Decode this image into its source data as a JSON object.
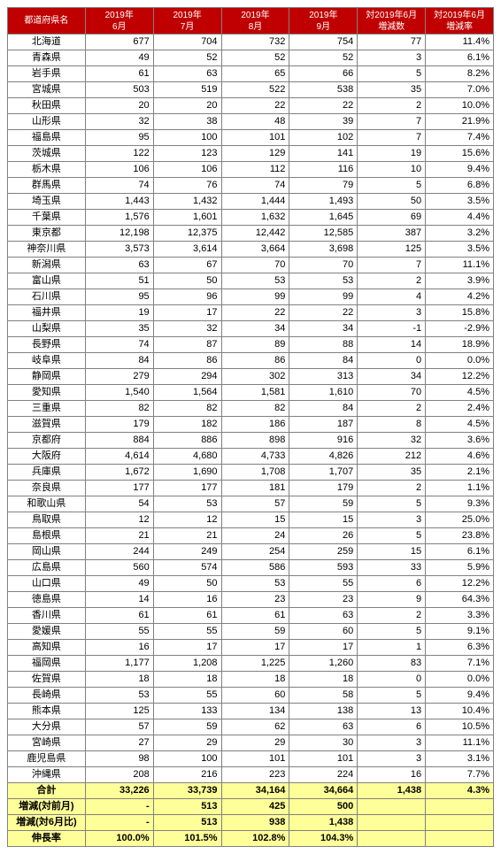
{
  "columns": [
    {
      "label": "都道府県名",
      "cls": "red"
    },
    {
      "label": "2019年\n6月",
      "cls": "red"
    },
    {
      "label": "2019年\n7月",
      "cls": "red"
    },
    {
      "label": "2019年\n8月",
      "cls": "red"
    },
    {
      "label": "2019年\n9月",
      "cls": "red"
    },
    {
      "label": "対2019年6月\n増減数",
      "cls": "dred"
    },
    {
      "label": "対2019年6月\n増減率",
      "cls": "dred"
    }
  ],
  "rows": [
    {
      "name": "北海道",
      "v": [
        "677",
        "704",
        "732",
        "754",
        "77",
        "11.4%"
      ]
    },
    {
      "name": "青森県",
      "v": [
        "49",
        "52",
        "52",
        "52",
        "3",
        "6.1%"
      ]
    },
    {
      "name": "岩手県",
      "v": [
        "61",
        "63",
        "65",
        "66",
        "5",
        "8.2%"
      ]
    },
    {
      "name": "宮城県",
      "v": [
        "503",
        "519",
        "522",
        "538",
        "35",
        "7.0%"
      ]
    },
    {
      "name": "秋田県",
      "v": [
        "20",
        "20",
        "22",
        "22",
        "2",
        "10.0%"
      ]
    },
    {
      "name": "山形県",
      "v": [
        "32",
        "38",
        "48",
        "39",
        "7",
        "21.9%"
      ]
    },
    {
      "name": "福島県",
      "v": [
        "95",
        "100",
        "101",
        "102",
        "7",
        "7.4%"
      ]
    },
    {
      "name": "茨城県",
      "v": [
        "122",
        "123",
        "129",
        "141",
        "19",
        "15.6%"
      ]
    },
    {
      "name": "栃木県",
      "v": [
        "106",
        "106",
        "112",
        "116",
        "10",
        "9.4%"
      ]
    },
    {
      "name": "群馬県",
      "v": [
        "74",
        "76",
        "74",
        "79",
        "5",
        "6.8%"
      ]
    },
    {
      "name": "埼玉県",
      "v": [
        "1,443",
        "1,432",
        "1,444",
        "1,493",
        "50",
        "3.5%"
      ]
    },
    {
      "name": "千葉県",
      "v": [
        "1,576",
        "1,601",
        "1,632",
        "1,645",
        "69",
        "4.4%"
      ]
    },
    {
      "name": "東京都",
      "v": [
        "12,198",
        "12,375",
        "12,442",
        "12,585",
        "387",
        "3.2%"
      ]
    },
    {
      "name": "神奈川県",
      "v": [
        "3,573",
        "3,614",
        "3,664",
        "3,698",
        "125",
        "3.5%"
      ]
    },
    {
      "name": "新潟県",
      "v": [
        "63",
        "67",
        "70",
        "70",
        "7",
        "11.1%"
      ]
    },
    {
      "name": "富山県",
      "v": [
        "51",
        "50",
        "53",
        "53",
        "2",
        "3.9%"
      ]
    },
    {
      "name": "石川県",
      "v": [
        "95",
        "96",
        "99",
        "99",
        "4",
        "4.2%"
      ]
    },
    {
      "name": "福井県",
      "v": [
        "19",
        "17",
        "22",
        "22",
        "3",
        "15.8%"
      ]
    },
    {
      "name": "山梨県",
      "v": [
        "35",
        "32",
        "34",
        "34",
        "-1",
        "-2.9%"
      ]
    },
    {
      "name": "長野県",
      "v": [
        "74",
        "87",
        "89",
        "88",
        "14",
        "18.9%"
      ]
    },
    {
      "name": "岐阜県",
      "v": [
        "84",
        "86",
        "86",
        "84",
        "0",
        "0.0%"
      ]
    },
    {
      "name": "静岡県",
      "v": [
        "279",
        "294",
        "302",
        "313",
        "34",
        "12.2%"
      ]
    },
    {
      "name": "愛知県",
      "v": [
        "1,540",
        "1,564",
        "1,581",
        "1,610",
        "70",
        "4.5%"
      ]
    },
    {
      "name": "三重県",
      "v": [
        "82",
        "82",
        "82",
        "84",
        "2",
        "2.4%"
      ]
    },
    {
      "name": "滋賀県",
      "v": [
        "179",
        "182",
        "186",
        "187",
        "8",
        "4.5%"
      ]
    },
    {
      "name": "京都府",
      "v": [
        "884",
        "886",
        "898",
        "916",
        "32",
        "3.6%"
      ]
    },
    {
      "name": "大阪府",
      "v": [
        "4,614",
        "4,680",
        "4,733",
        "4,826",
        "212",
        "4.6%"
      ]
    },
    {
      "name": "兵庫県",
      "v": [
        "1,672",
        "1,690",
        "1,708",
        "1,707",
        "35",
        "2.1%"
      ]
    },
    {
      "name": "奈良県",
      "v": [
        "177",
        "177",
        "181",
        "179",
        "2",
        "1.1%"
      ]
    },
    {
      "name": "和歌山県",
      "v": [
        "54",
        "53",
        "57",
        "59",
        "5",
        "9.3%"
      ]
    },
    {
      "name": "鳥取県",
      "v": [
        "12",
        "12",
        "15",
        "15",
        "3",
        "25.0%"
      ]
    },
    {
      "name": "島根県",
      "v": [
        "21",
        "21",
        "24",
        "26",
        "5",
        "23.8%"
      ]
    },
    {
      "name": "岡山県",
      "v": [
        "244",
        "249",
        "254",
        "259",
        "15",
        "6.1%"
      ]
    },
    {
      "name": "広島県",
      "v": [
        "560",
        "574",
        "586",
        "593",
        "33",
        "5.9%"
      ]
    },
    {
      "name": "山口県",
      "v": [
        "49",
        "50",
        "53",
        "55",
        "6",
        "12.2%"
      ]
    },
    {
      "name": "徳島県",
      "v": [
        "14",
        "16",
        "23",
        "23",
        "9",
        "64.3%"
      ]
    },
    {
      "name": "香川県",
      "v": [
        "61",
        "61",
        "61",
        "63",
        "2",
        "3.3%"
      ]
    },
    {
      "name": "愛媛県",
      "v": [
        "55",
        "55",
        "59",
        "60",
        "5",
        "9.1%"
      ]
    },
    {
      "name": "高知県",
      "v": [
        "16",
        "17",
        "17",
        "17",
        "1",
        "6.3%"
      ]
    },
    {
      "name": "福岡県",
      "v": [
        "1,177",
        "1,208",
        "1,225",
        "1,260",
        "83",
        "7.1%"
      ]
    },
    {
      "name": "佐賀県",
      "v": [
        "18",
        "18",
        "18",
        "18",
        "0",
        "0.0%"
      ]
    },
    {
      "name": "長崎県",
      "v": [
        "53",
        "55",
        "60",
        "58",
        "5",
        "9.4%"
      ]
    },
    {
      "name": "熊本県",
      "v": [
        "125",
        "133",
        "134",
        "138",
        "13",
        "10.4%"
      ]
    },
    {
      "name": "大分県",
      "v": [
        "57",
        "59",
        "62",
        "63",
        "6",
        "10.5%"
      ]
    },
    {
      "name": "宮崎県",
      "v": [
        "27",
        "29",
        "29",
        "30",
        "3",
        "11.1%"
      ]
    },
    {
      "name": "鹿児島県",
      "v": [
        "98",
        "100",
        "101",
        "101",
        "3",
        "3.1%"
      ]
    },
    {
      "name": "沖縄県",
      "v": [
        "208",
        "216",
        "223",
        "224",
        "16",
        "7.7%"
      ]
    }
  ],
  "summary": [
    {
      "name": "合計",
      "v": [
        "33,226",
        "33,739",
        "34,164",
        "34,664",
        "1,438",
        "4.3%"
      ]
    },
    {
      "name": "増減(対前月)",
      "v": [
        "-",
        "513",
        "425",
        "500",
        "",
        ""
      ]
    },
    {
      "name": "増減(対6月比)",
      "v": [
        "-",
        "513",
        "938",
        "1,438",
        "",
        ""
      ]
    },
    {
      "name": "伸長率",
      "v": [
        "100.0%",
        "101.5%",
        "102.8%",
        "104.3%",
        "",
        ""
      ]
    }
  ]
}
